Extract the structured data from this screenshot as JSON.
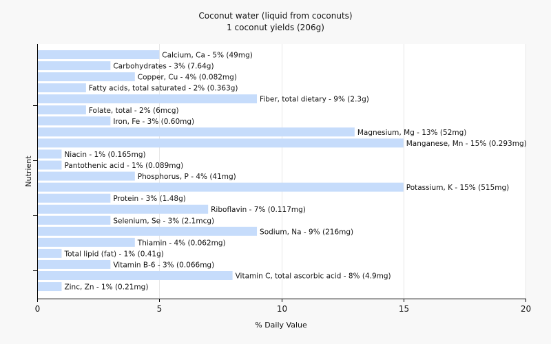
{
  "chart_data": {
    "type": "bar",
    "orientation": "horizontal",
    "title": "Coconut water (liquid from coconuts)",
    "subtitle": "1 coconut yields (206g)",
    "xlabel": "% Daily Value",
    "ylabel": "Nutrient",
    "xlim": [
      0,
      20
    ],
    "xticks": [
      0,
      5,
      10,
      15,
      20
    ],
    "grid": true,
    "bar_color": "#c6dcfb",
    "categories": [
      "Calcium, Ca",
      "Carbohydrates",
      "Copper, Cu",
      "Fatty acids, total saturated",
      "Fiber, total dietary",
      "Folate, total",
      "Iron, Fe",
      "Magnesium, Mg",
      "Manganese, Mn",
      "Niacin",
      "Pantothenic acid",
      "Phosphorus, P",
      "Potassium, K",
      "Protein",
      "Riboflavin",
      "Selenium, Se",
      "Sodium, Na",
      "Thiamin",
      "Total lipid (fat)",
      "Vitamin B-6",
      "Vitamin C, total ascorbic acid",
      "Zinc, Zn"
    ],
    "values": [
      5,
      3,
      4,
      2,
      9,
      2,
      3,
      13,
      15,
      1,
      1,
      4,
      15,
      3,
      7,
      3,
      9,
      4,
      1,
      3,
      8,
      1
    ],
    "labels": [
      "Calcium, Ca - 5% (49mg)",
      "Carbohydrates - 3% (7.64g)",
      "Copper, Cu - 4% (0.082mg)",
      "Fatty acids, total saturated - 2% (0.363g)",
      "Fiber, total dietary - 9% (2.3g)",
      "Folate, total - 2% (6mcg)",
      "Iron, Fe - 3% (0.60mg)",
      "Magnesium, Mg - 13% (52mg)",
      "Manganese, Mn - 15% (0.293mg)",
      "Niacin - 1% (0.165mg)",
      "Pantothenic acid - 1% (0.089mg)",
      "Phosphorus, P - 4% (41mg)",
      "Potassium, K - 15% (515mg)",
      "Protein - 3% (1.48g)",
      "Riboflavin - 7% (0.117mg)",
      "Selenium, Se - 3% (2.1mcg)",
      "Sodium, Na - 9% (216mg)",
      "Thiamin - 4% (0.062mg)",
      "Total lipid (fat) - 1% (0.41g)",
      "Vitamin B-6 - 3% (0.066mg)",
      "Vitamin C, total ascorbic acid - 8% (4.9mg)",
      "Zinc, Zn - 1% (0.21mg)"
    ]
  }
}
